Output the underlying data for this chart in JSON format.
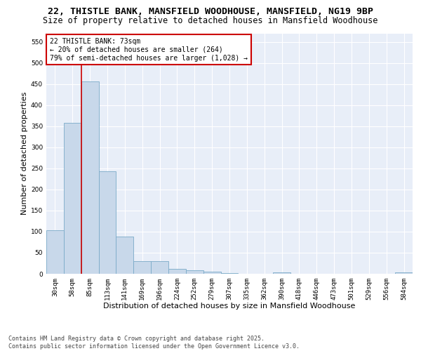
{
  "title": "22, THISTLE BANK, MANSFIELD WOODHOUSE, MANSFIELD, NG19 9BP",
  "subtitle": "Size of property relative to detached houses in Mansfield Woodhouse",
  "xlabel": "Distribution of detached houses by size in Mansfield Woodhouse",
  "ylabel": "Number of detached properties",
  "bins": [
    "30sqm",
    "58sqm",
    "85sqm",
    "113sqm",
    "141sqm",
    "169sqm",
    "196sqm",
    "224sqm",
    "252sqm",
    "279sqm",
    "307sqm",
    "335sqm",
    "362sqm",
    "390sqm",
    "418sqm",
    "446sqm",
    "473sqm",
    "501sqm",
    "529sqm",
    "556sqm",
    "584sqm"
  ],
  "values": [
    103,
    357,
    456,
    243,
    88,
    30,
    30,
    12,
    8,
    5,
    2,
    0,
    0,
    3,
    0,
    0,
    0,
    0,
    0,
    0,
    3
  ],
  "bar_color": "#c8d8ea",
  "bar_edge_color": "#7aaac8",
  "vline_color": "#cc0000",
  "vline_x": 1.5,
  "annotation_text": "22 THISTLE BANK: 73sqm\n← 20% of detached houses are smaller (264)\n79% of semi-detached houses are larger (1,028) →",
  "annotation_box_facecolor": "#ffffff",
  "annotation_box_edgecolor": "#cc0000",
  "ylim": [
    0,
    570
  ],
  "yticks": [
    0,
    50,
    100,
    150,
    200,
    250,
    300,
    350,
    400,
    450,
    500,
    550
  ],
  "bg_color": "#e8eef8",
  "grid_color": "#ffffff",
  "footer": "Contains HM Land Registry data © Crown copyright and database right 2025.\nContains public sector information licensed under the Open Government Licence v3.0.",
  "title_fontsize": 9.5,
  "subtitle_fontsize": 8.5,
  "tick_fontsize": 6.5,
  "label_fontsize": 8,
  "annotation_fontsize": 7,
  "footer_fontsize": 6
}
